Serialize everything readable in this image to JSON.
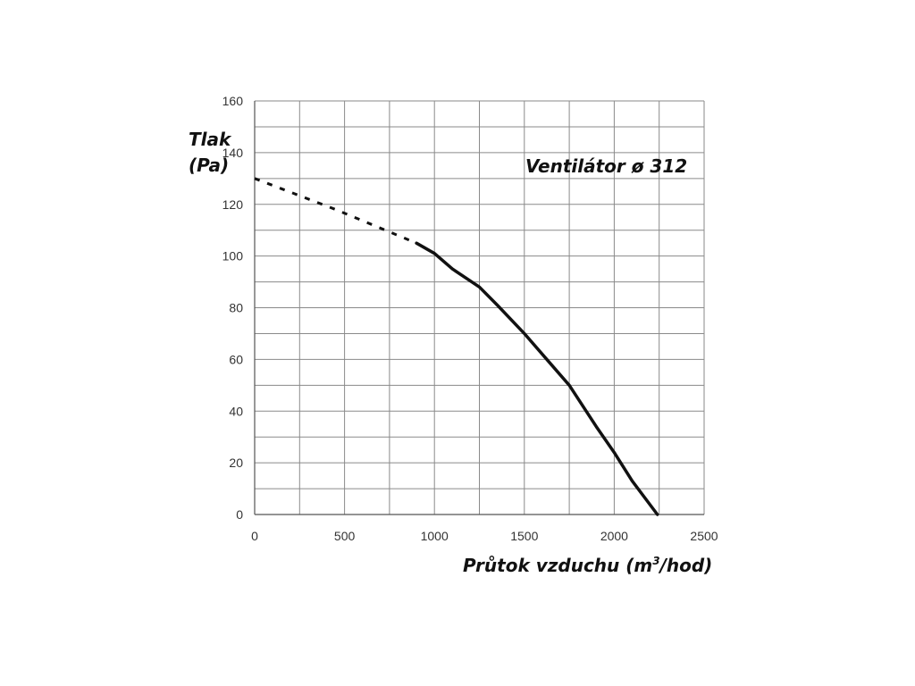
{
  "chart_data": {
    "type": "line",
    "title": "",
    "annotation": "Ventilátor ø 312",
    "ylabel_line1": "Tlak",
    "ylabel_line2": "(Pa)",
    "xlabel_main": "Průtok vzduchu (m",
    "xlabel_sup": "3",
    "xlabel_end": "/hod)",
    "xlim": [
      0,
      2500
    ],
    "ylim": [
      0,
      160
    ],
    "x_ticks": [
      0,
      500,
      1000,
      1500,
      2000,
      2500
    ],
    "y_ticks": [
      0,
      20,
      40,
      60,
      80,
      100,
      120,
      140,
      160
    ],
    "x_grid_step": 250,
    "y_grid_step": 10,
    "grid": true,
    "series": [
      {
        "style": "dashed",
        "x": [
          0,
          450,
          900
        ],
        "y": [
          130,
          118,
          105
        ]
      },
      {
        "style": "solid",
        "x": [
          900,
          1000,
          1100,
          1250,
          1350,
          1500,
          1650,
          1750,
          1900,
          2000,
          2100,
          2240
        ],
        "y": [
          105,
          101,
          95,
          88,
          81,
          70,
          58,
          50,
          34,
          24,
          13,
          0
        ]
      }
    ]
  }
}
